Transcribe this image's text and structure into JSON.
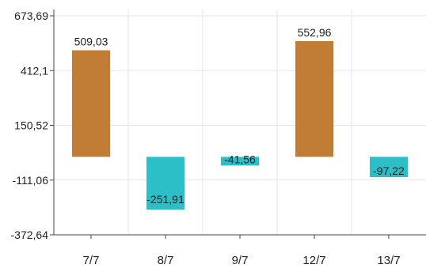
{
  "chart_data": {
    "type": "bar",
    "title": "",
    "xlabel": "",
    "ylabel": "",
    "categories": [
      "7/7",
      "8/7",
      "9/7",
      "12/7",
      "13/7"
    ],
    "values": [
      509.03,
      -251.91,
      -41.56,
      552.96,
      -97.22
    ],
    "value_labels": [
      "509,03",
      "-251,91",
      "-41,56",
      "552,96",
      "-97,22"
    ],
    "y_ticks": [
      673.69,
      412.1,
      150.52,
      -111.06,
      -372.64
    ],
    "y_tick_labels": [
      "673,69",
      "412,1",
      "150,52",
      "-111,06",
      "-372,64"
    ],
    "ylim": [
      -372.64,
      673.69
    ],
    "grid": true,
    "legend": "none",
    "colors": {
      "positive": "#c17d35",
      "negative": "#2dbfc8",
      "grid": "#e6e6e6",
      "axis": "#444444",
      "text": "#222222"
    }
  }
}
